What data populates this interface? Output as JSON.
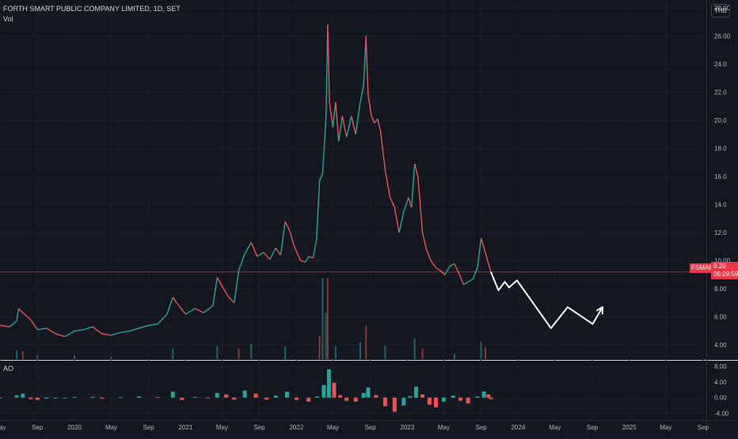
{
  "header": {
    "title": "FORTH SMART PUBLIC COMPANY LIMITED, 1D, SET",
    "volume_label": "Vol",
    "currency": "THB"
  },
  "price_tag": {
    "ticker": "FSMART",
    "price": "9.20",
    "countdown": "06:29:59"
  },
  "ao_label": "AO",
  "colors": {
    "background": "#131722",
    "up": "#26a69a",
    "down": "#ef5350",
    "tag": "#f23645",
    "projection": "#ffffff"
  },
  "chart_data": [
    {
      "type": "line",
      "title": "FORTH SMART PUBLIC COMPANY LIMITED, 1D, SET",
      "y_axis_side": "right",
      "ylim": [
        3.0,
        28.0
      ],
      "y_ticks": [
        "4.00",
        "6.00",
        "8.00",
        "10.00",
        "12.0",
        "14.0",
        "16.0",
        "18.0",
        "20.0",
        "22.0",
        "24.0",
        "26.00",
        "28.00"
      ],
      "y_tick_values": [
        4,
        6,
        8,
        10,
        12,
        14,
        16,
        18,
        20,
        22,
        24,
        26,
        28
      ],
      "x_ticks": [
        "May",
        "Sep",
        "2020",
        "May",
        "Sep",
        "2021",
        "May",
        "Sep",
        "2022",
        "May",
        "Sep",
        "2023",
        "May",
        "Sep",
        "2024",
        "May",
        "Sep",
        "2025",
        "May",
        "Sep"
      ],
      "x_tick_dates": [
        "2019-05-01",
        "2019-09-01",
        "2020-01-01",
        "2020-05-01",
        "2020-09-01",
        "2021-01-01",
        "2021-05-01",
        "2021-09-01",
        "2022-01-01",
        "2022-05-01",
        "2022-09-01",
        "2023-01-01",
        "2023-05-01",
        "2023-09-01",
        "2024-01-01",
        "2024-05-01",
        "2024-09-01",
        "2025-01-01",
        "2025-05-01",
        "2025-09-01"
      ],
      "last_price": 9.2,
      "price_series": {
        "name": "FSMART",
        "points": [
          [
            "2019-05-01",
            5.4
          ],
          [
            "2019-06-01",
            5.3
          ],
          [
            "2019-06-25",
            5.7
          ],
          [
            "2019-07-01",
            6.6
          ],
          [
            "2019-07-20",
            6.2
          ],
          [
            "2019-08-10",
            5.8
          ],
          [
            "2019-09-01",
            5.1
          ],
          [
            "2019-10-01",
            5.2
          ],
          [
            "2019-11-01",
            4.8
          ],
          [
            "2019-12-01",
            4.6
          ],
          [
            "2020-01-01",
            5.0
          ],
          [
            "2020-02-01",
            5.1
          ],
          [
            "2020-03-01",
            5.3
          ],
          [
            "2020-04-01",
            4.8
          ],
          [
            "2020-05-01",
            4.7
          ],
          [
            "2020-06-01",
            4.9
          ],
          [
            "2020-07-01",
            5.0
          ],
          [
            "2020-08-01",
            5.2
          ],
          [
            "2020-09-01",
            5.4
          ],
          [
            "2020-10-01",
            5.5
          ],
          [
            "2020-11-01",
            6.2
          ],
          [
            "2020-11-20",
            7.4
          ],
          [
            "2020-12-10",
            6.8
          ],
          [
            "2021-01-01",
            6.2
          ],
          [
            "2021-02-01",
            6.6
          ],
          [
            "2021-03-01",
            6.3
          ],
          [
            "2021-04-01",
            6.8
          ],
          [
            "2021-04-15",
            8.8
          ],
          [
            "2021-05-01",
            8.2
          ],
          [
            "2021-05-20",
            7.5
          ],
          [
            "2021-06-10",
            7.0
          ],
          [
            "2021-06-25",
            9.3
          ],
          [
            "2021-07-15",
            10.5
          ],
          [
            "2021-08-05",
            11.3
          ],
          [
            "2021-08-25",
            10.3
          ],
          [
            "2021-09-15",
            10.6
          ],
          [
            "2021-10-05",
            10.1
          ],
          [
            "2021-10-25",
            10.9
          ],
          [
            "2021-11-10",
            10.4
          ],
          [
            "2021-11-25",
            12.8
          ],
          [
            "2021-12-10",
            12.1
          ],
          [
            "2021-12-25",
            11.0
          ],
          [
            "2022-01-15",
            10.0
          ],
          [
            "2022-01-30",
            9.9
          ],
          [
            "2022-02-10",
            10.3
          ],
          [
            "2022-02-25",
            10.2
          ],
          [
            "2022-03-08",
            11.5
          ],
          [
            "2022-03-18",
            15.7
          ],
          [
            "2022-03-28",
            16.2
          ],
          [
            "2022-04-08",
            20.0
          ],
          [
            "2022-04-14",
            26.8
          ],
          [
            "2022-04-20",
            21.2
          ],
          [
            "2022-05-01",
            19.5
          ],
          [
            "2022-05-10",
            21.3
          ],
          [
            "2022-05-20",
            18.5
          ],
          [
            "2022-06-01",
            20.3
          ],
          [
            "2022-06-15",
            18.8
          ],
          [
            "2022-07-01",
            20.3
          ],
          [
            "2022-07-15",
            19.0
          ],
          [
            "2022-07-30",
            21.3
          ],
          [
            "2022-08-10",
            22.5
          ],
          [
            "2022-08-18",
            26.0
          ],
          [
            "2022-08-25",
            21.8
          ],
          [
            "2022-09-05",
            20.3
          ],
          [
            "2022-09-15",
            19.8
          ],
          [
            "2022-09-25",
            20.1
          ],
          [
            "2022-10-05",
            19.2
          ],
          [
            "2022-10-20",
            16.5
          ],
          [
            "2022-11-05",
            14.5
          ],
          [
            "2022-11-20",
            13.8
          ],
          [
            "2022-12-05",
            12.0
          ],
          [
            "2022-12-20",
            13.5
          ],
          [
            "2023-01-05",
            14.5
          ],
          [
            "2023-01-15",
            13.8
          ],
          [
            "2023-01-25",
            16.9
          ],
          [
            "2023-02-05",
            16.0
          ],
          [
            "2023-02-20",
            12.0
          ],
          [
            "2023-03-05",
            10.8
          ],
          [
            "2023-03-20",
            10.0
          ],
          [
            "2023-04-05",
            9.5
          ],
          [
            "2023-04-20",
            9.3
          ],
          [
            "2023-05-05",
            9.0
          ],
          [
            "2023-05-20",
            9.6
          ],
          [
            "2023-06-05",
            9.8
          ],
          [
            "2023-06-20",
            9.1
          ],
          [
            "2023-07-05",
            8.3
          ],
          [
            "2023-07-20",
            8.5
          ],
          [
            "2023-08-05",
            8.7
          ],
          [
            "2023-08-20",
            9.5
          ],
          [
            "2023-09-01",
            11.6
          ],
          [
            "2023-09-15",
            10.6
          ],
          [
            "2023-09-25",
            9.8
          ],
          [
            "2023-10-03",
            9.2
          ]
        ]
      },
      "projection_path": {
        "name": "projection",
        "points": [
          [
            "2023-10-03",
            9.2
          ],
          [
            "2023-10-28",
            7.9
          ],
          [
            "2023-11-18",
            8.5
          ],
          [
            "2023-12-02",
            8.1
          ],
          [
            "2023-12-28",
            8.6
          ],
          [
            "2024-04-18",
            5.2
          ],
          [
            "2024-06-12",
            6.7
          ],
          [
            "2024-09-02",
            5.5
          ],
          [
            "2024-10-05",
            6.7
          ]
        ]
      }
    },
    {
      "type": "bar",
      "name": "Volume",
      "note": "volume histogram overlaid at bottom of price pane",
      "points": [
        [
          "2019-06-25",
          0.7
        ],
        [
          "2019-07-15",
          0.6
        ],
        [
          "2019-09-01",
          0.3
        ],
        [
          "2020-01-01",
          0.3
        ],
        [
          "2020-05-01",
          0.2
        ],
        [
          "2020-11-20",
          0.8
        ],
        [
          "2021-04-15",
          1.0
        ],
        [
          "2021-06-25",
          0.8
        ],
        [
          "2021-08-05",
          1.2
        ],
        [
          "2021-11-25",
          1.0
        ],
        [
          "2022-03-18",
          1.8
        ],
        [
          "2022-03-28",
          6.3
        ],
        [
          "2022-04-08",
          3.6
        ],
        [
          "2022-04-14",
          6.3
        ],
        [
          "2022-05-10",
          1.0
        ],
        [
          "2022-07-30",
          1.3
        ],
        [
          "2022-08-18",
          2.6
        ],
        [
          "2022-10-20",
          1.0
        ],
        [
          "2023-01-25",
          1.6
        ],
        [
          "2023-02-20",
          0.8
        ],
        [
          "2023-06-05",
          0.4
        ],
        [
          "2023-09-01",
          1.4
        ],
        [
          "2023-09-15",
          0.9
        ]
      ],
      "ylim": [
        0,
        7
      ]
    },
    {
      "type": "bar",
      "name": "AO",
      "title": "AO",
      "ylim": [
        -5.5,
        9.0
      ],
      "y_ticks": [
        "8.00",
        "4.00",
        "0.00",
        "-4.00"
      ],
      "y_tick_values": [
        8,
        4,
        0,
        -4
      ],
      "points": [
        [
          "2019-05-01",
          0.0
        ],
        [
          "2019-06-25",
          0.6
        ],
        [
          "2019-07-15",
          1.0
        ],
        [
          "2019-08-10",
          -0.4
        ],
        [
          "2019-09-01",
          -0.6
        ],
        [
          "2019-10-01",
          -0.3
        ],
        [
          "2019-11-01",
          -0.2
        ],
        [
          "2019-12-01",
          -0.1
        ],
        [
          "2020-01-01",
          0.2
        ],
        [
          "2020-03-01",
          0.2
        ],
        [
          "2020-04-01",
          -0.3
        ],
        [
          "2020-06-01",
          0.1
        ],
        [
          "2020-08-01",
          0.3
        ],
        [
          "2020-10-01",
          0.2
        ],
        [
          "2020-11-20",
          1.5
        ],
        [
          "2020-12-20",
          -0.6
        ],
        [
          "2021-02-01",
          0.2
        ],
        [
          "2021-03-15",
          -0.2
        ],
        [
          "2021-04-15",
          1.2
        ],
        [
          "2021-05-15",
          0.8
        ],
        [
          "2021-06-10",
          -0.5
        ],
        [
          "2021-07-15",
          1.8
        ],
        [
          "2021-08-20",
          1.0
        ],
        [
          "2021-09-25",
          -0.5
        ],
        [
          "2021-10-25",
          0.5
        ],
        [
          "2021-12-01",
          1.5
        ],
        [
          "2022-01-01",
          -0.6
        ],
        [
          "2022-02-10",
          -1.0
        ],
        [
          "2022-03-10",
          0.3
        ],
        [
          "2022-04-01",
          3.2
        ],
        [
          "2022-04-18",
          7.2
        ],
        [
          "2022-05-05",
          3.8
        ],
        [
          "2022-05-25",
          0.6
        ],
        [
          "2022-06-15",
          -0.8
        ],
        [
          "2022-07-15",
          -1.0
        ],
        [
          "2022-08-10",
          1.2
        ],
        [
          "2022-08-25",
          2.6
        ],
        [
          "2022-09-20",
          0.6
        ],
        [
          "2022-10-20",
          -2.2
        ],
        [
          "2022-11-20",
          -3.6
        ],
        [
          "2022-12-20",
          -2.0
        ],
        [
          "2023-01-10",
          0.4
        ],
        [
          "2023-01-30",
          2.8
        ],
        [
          "2023-02-20",
          0.8
        ],
        [
          "2023-03-15",
          -1.8
        ],
        [
          "2023-04-05",
          -2.5
        ],
        [
          "2023-05-01",
          -1.0
        ],
        [
          "2023-06-01",
          0.5
        ],
        [
          "2023-06-25",
          -0.8
        ],
        [
          "2023-07-20",
          -1.5
        ],
        [
          "2023-08-20",
          0.3
        ],
        [
          "2023-09-10",
          1.6
        ],
        [
          "2023-09-25",
          0.8
        ],
        [
          "2023-10-03",
          -0.4
        ]
      ]
    }
  ]
}
